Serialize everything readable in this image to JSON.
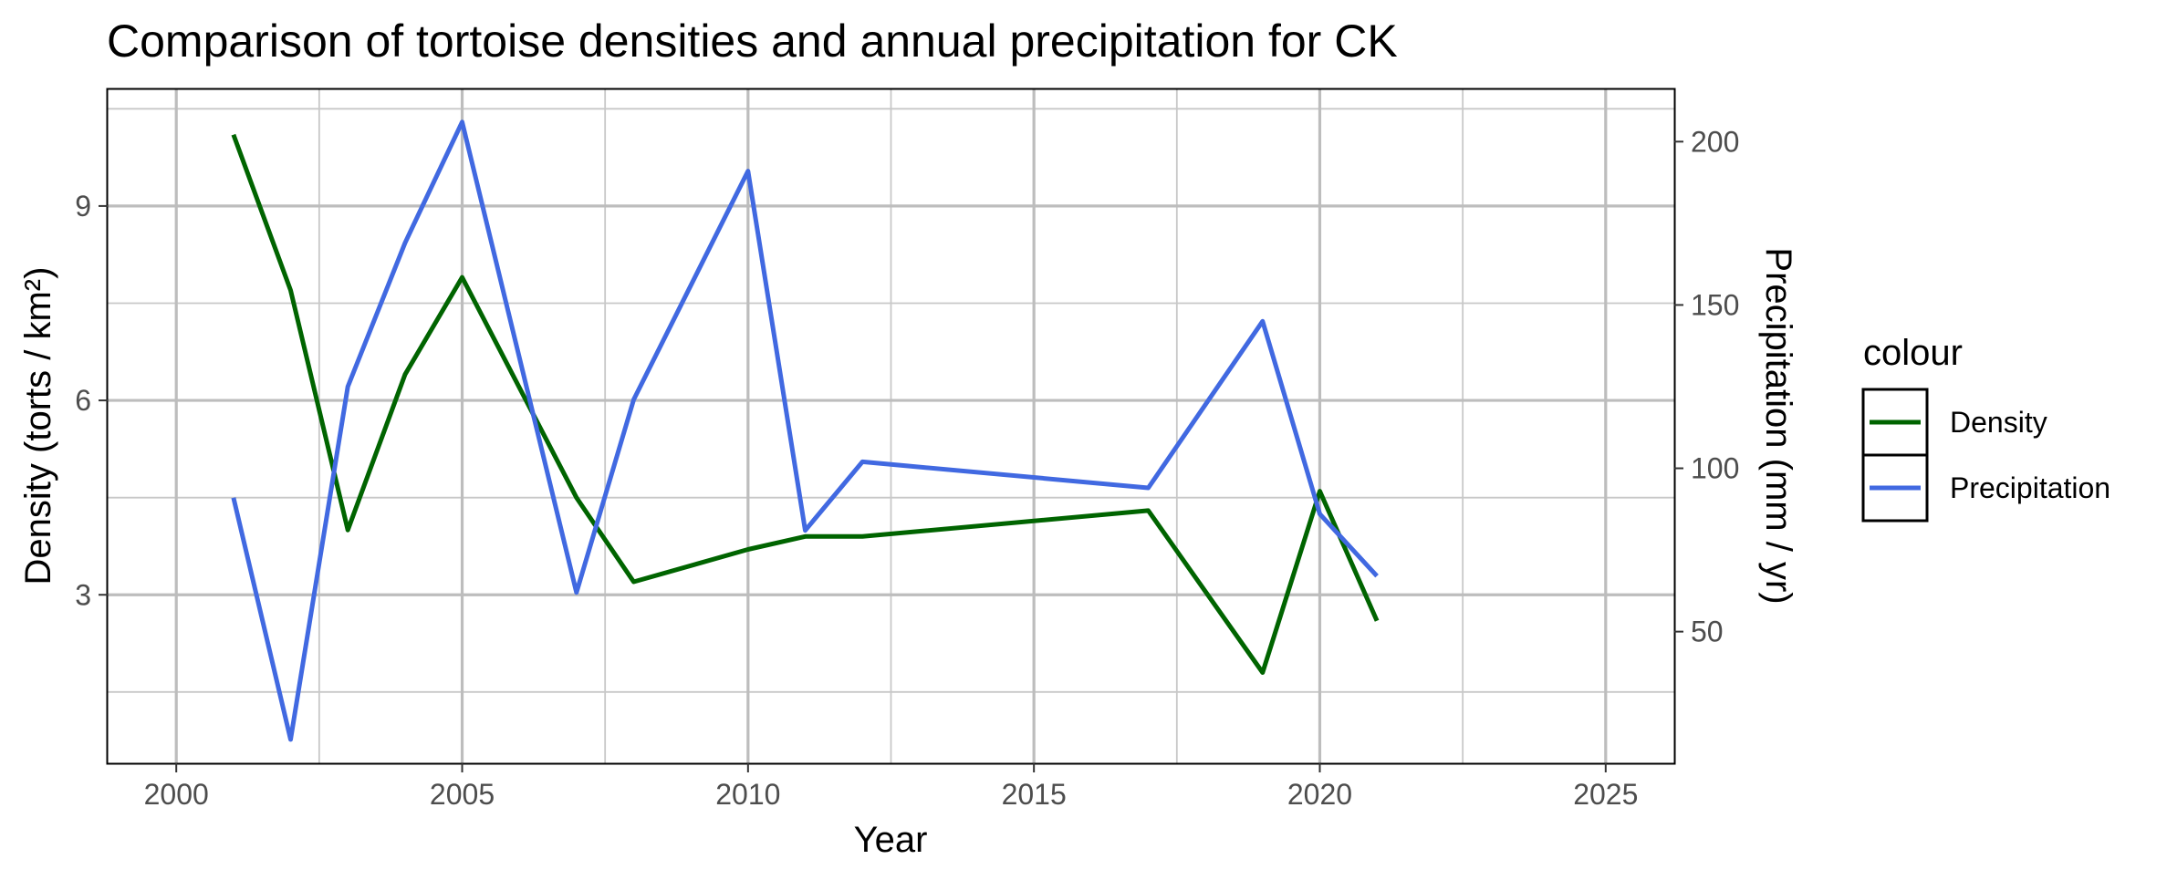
{
  "chart_data": {
    "type": "line",
    "title": "Comparison of tortoise densities and annual precipitation for CK",
    "xlabel": "Year",
    "ylabel": "Density (torts / km²)",
    "ylabel_right": "Precipitation (mm / yr)",
    "xlim": [
      1998.8,
      2026.2
    ],
    "ylim": [
      0.4,
      10.8
    ],
    "ylim_right": [
      9.7,
      216.0
    ],
    "x_ticks": [
      2000,
      2005,
      2010,
      2015,
      2020,
      2025
    ],
    "x_tick_labels": [
      "2000",
      "2005",
      "2010",
      "2015",
      "2020",
      "2025"
    ],
    "y_ticks": [
      3,
      6,
      9
    ],
    "y_tick_labels": [
      "3",
      "6",
      "9"
    ],
    "y_ticks_right": [
      50,
      100,
      150,
      200
    ],
    "y_tick_labels_right": [
      "50",
      "100",
      "150",
      "200"
    ],
    "grid": true,
    "legend": {
      "title": "colour",
      "placement": "right",
      "entries": [
        "Density",
        "Precipitation"
      ]
    },
    "series": [
      {
        "name": "Density",
        "axis": "left",
        "color": "#006400",
        "x": [
          2001,
          2002,
          2003,
          2004,
          2005,
          2007,
          2008,
          2010,
          2011,
          2012,
          2017,
          2019,
          2020,
          2021
        ],
        "values": [
          10.1,
          7.7,
          4.0,
          6.4,
          7.9,
          4.5,
          3.2,
          3.7,
          3.9,
          3.9,
          4.3,
          1.8,
          4.6,
          2.6
        ]
      },
      {
        "name": "Precipitation",
        "axis": "right",
        "color": "#4169E1",
        "x": [
          2001,
          2002,
          2003,
          2004,
          2005,
          2007,
          2008,
          2010,
          2011,
          2012,
          2017,
          2019,
          2020,
          2021
        ],
        "values": [
          91,
          17,
          125,
          169,
          206,
          62,
          121,
          191,
          81,
          102,
          94,
          145,
          86,
          67
        ]
      }
    ]
  }
}
